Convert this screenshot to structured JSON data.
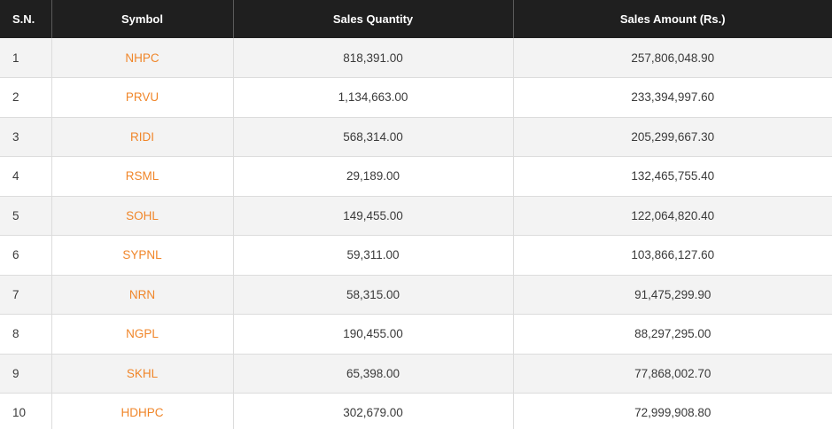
{
  "table": {
    "headers": {
      "sn": "S.N.",
      "symbol": "Symbol",
      "sales_quantity": "Sales Quantity",
      "sales_amount": "Sales Amount (Rs.)"
    },
    "rows": [
      {
        "sn": "1",
        "symbol": "NHPC",
        "quantity": "818,391.00",
        "amount": "257,806,048.90"
      },
      {
        "sn": "2",
        "symbol": "PRVU",
        "quantity": "1,134,663.00",
        "amount": "233,394,997.60"
      },
      {
        "sn": "3",
        "symbol": "RIDI",
        "quantity": "568,314.00",
        "amount": "205,299,667.30"
      },
      {
        "sn": "4",
        "symbol": "RSML",
        "quantity": "29,189.00",
        "amount": "132,465,755.40"
      },
      {
        "sn": "5",
        "symbol": "SOHL",
        "quantity": "149,455.00",
        "amount": "122,064,820.40"
      },
      {
        "sn": "6",
        "symbol": "SYPNL",
        "quantity": "59,311.00",
        "amount": "103,866,127.60"
      },
      {
        "sn": "7",
        "symbol": "NRN",
        "quantity": "58,315.00",
        "amount": "91,475,299.90"
      },
      {
        "sn": "8",
        "symbol": "NGPL",
        "quantity": "190,455.00",
        "amount": "88,297,295.00"
      },
      {
        "sn": "9",
        "symbol": "SKHL",
        "quantity": "65,398.00",
        "amount": "77,868,002.70"
      },
      {
        "sn": "10",
        "symbol": "HDHPC",
        "quantity": "302,679.00",
        "amount": "72,999,908.80"
      }
    ]
  },
  "colors": {
    "header_bg": "#1f1f1f",
    "symbol_link": "#f0862a",
    "row_alt": "#f3f3f3"
  }
}
